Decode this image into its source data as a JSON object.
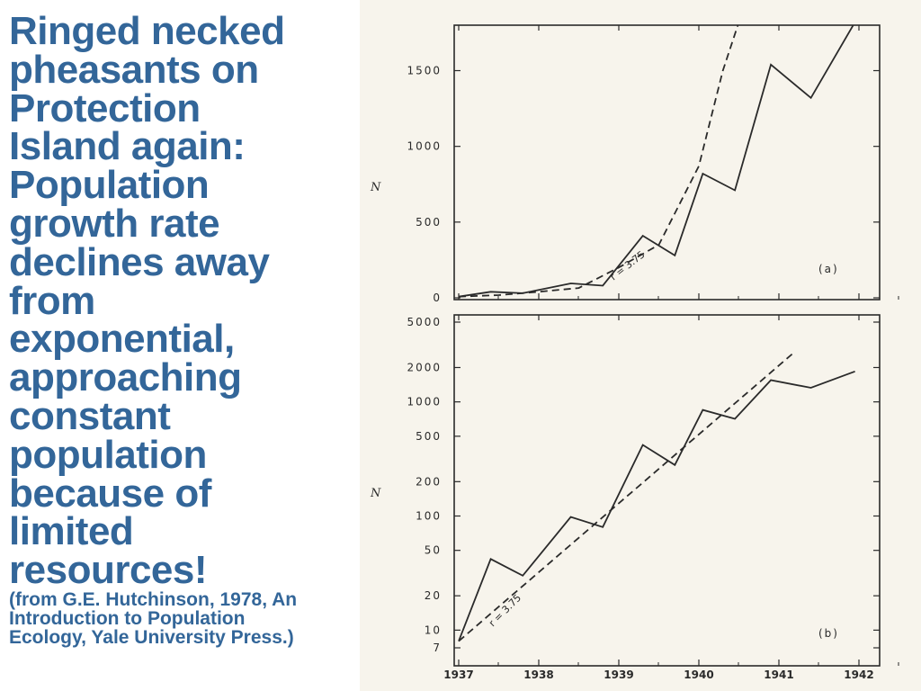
{
  "slide": {
    "title": "Ringed necked\npheasants on\nProtection\nIsland again:\nPopulation\ngrowth rate\ndeclines away\nfrom\nexponential,\napproaching\nconstant\npopulation\nbecause of\nlimited\nresources!",
    "citation": "(from G.E. Hutchinson, 1978, An\nIntroduction to Population\nEcology, Yale University Press.)"
  },
  "colors": {
    "text_accent": "#336699",
    "ink": "#2a2a2a",
    "figure_bg": "#f7f4ec"
  },
  "chart_data": [
    {
      "type": "line",
      "panel_label": "(a)",
      "ylabel": "N",
      "yscale": "linear",
      "ylim": [
        0,
        1800
      ],
      "xlim": [
        1937,
        1942.2
      ],
      "yticks": [
        0,
        500,
        1000,
        1500
      ],
      "ytick_labels": [
        "0",
        "500",
        "1000",
        "1500"
      ],
      "xticks": [
        1937,
        1938,
        1939,
        1940,
        1941,
        1942
      ],
      "xtick_labels": [
        "1937",
        "1938",
        "1939",
        "1940",
        "1941",
        "1942"
      ],
      "annotation": "r = 3.75",
      "series": [
        {
          "style": "solid",
          "x": [
            1937,
            1937.4,
            1937.8,
            1938.4,
            1938.8,
            1939.3,
            1939.7,
            1940.05,
            1940.45,
            1940.9,
            1941.4,
            1941.95
          ],
          "y": [
            8,
            40,
            30,
            95,
            80,
            410,
            280,
            820,
            710,
            1540,
            1320,
            1820
          ]
        },
        {
          "style": "dashed",
          "x": [
            1937,
            1937.5,
            1938,
            1938.5,
            1939,
            1939.5,
            1940,
            1940.3,
            1940.5
          ],
          "y": [
            8,
            18,
            40,
            65,
            200,
            350,
            870,
            1500,
            1820
          ]
        }
      ]
    },
    {
      "type": "line",
      "panel_label": "(b)",
      "ylabel": "N",
      "yscale": "log",
      "ylim": [
        7,
        5000
      ],
      "xlim": [
        1937,
        1942.2
      ],
      "yticks": [
        7,
        10,
        20,
        50,
        100,
        200,
        500,
        1000,
        2000,
        5000
      ],
      "ytick_labels": [
        "7",
        "10",
        "20",
        "50",
        "100",
        "200",
        "500",
        "1000",
        "2000",
        "5000"
      ],
      "xticks": [
        1937,
        1938,
        1939,
        1940,
        1941,
        1942
      ],
      "xtick_labels": [
        "1937",
        "1938",
        "1939",
        "1940",
        "1941",
        "1942"
      ],
      "annotation": "r = 3.75",
      "series": [
        {
          "style": "solid",
          "x": [
            1937,
            1937.4,
            1937.8,
            1938.4,
            1938.8,
            1939.3,
            1939.7,
            1940.05,
            1940.45,
            1940.9,
            1941.4,
            1941.95
          ],
          "y": [
            8,
            42,
            30,
            98,
            80,
            420,
            280,
            850,
            710,
            1550,
            1330,
            1850
          ]
        },
        {
          "style": "dashed",
          "x": [
            1937,
            1941.2
          ],
          "y": [
            8,
            2750
          ]
        }
      ]
    }
  ]
}
